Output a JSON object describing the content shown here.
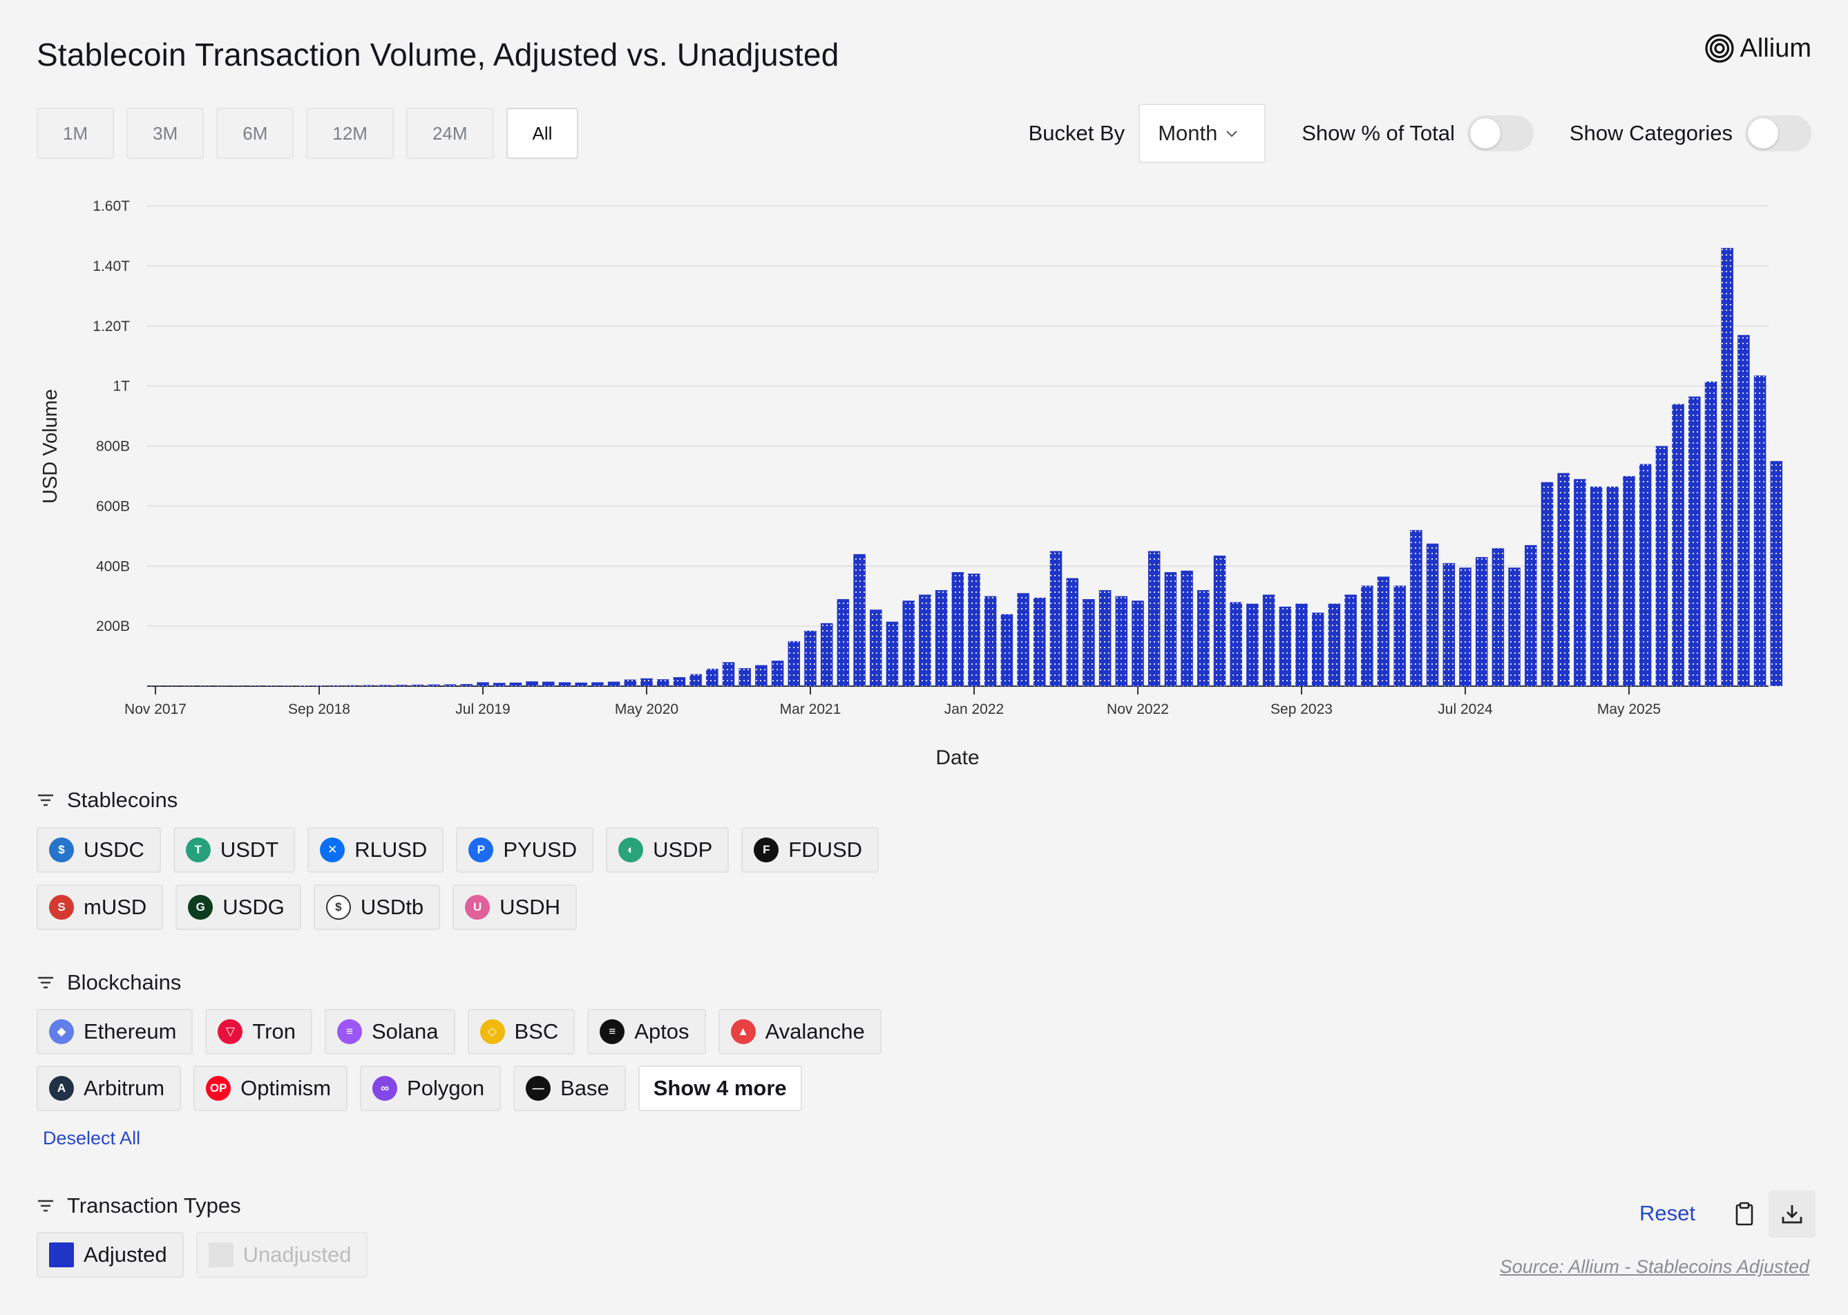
{
  "header": {
    "title": "Stablecoin Transaction Volume, Adjusted vs. Unadjusted",
    "brand": "Allium"
  },
  "range_buttons": [
    "1M",
    "3M",
    "6M",
    "12M",
    "24M",
    "All"
  ],
  "range_active": "All",
  "controls": {
    "bucket_label": "Bucket By",
    "bucket_value": "Month",
    "show_pct_label": "Show % of Total",
    "show_pct_on": false,
    "show_categories_label": "Show Categories",
    "show_categories_on": false
  },
  "chart_data": {
    "type": "bar",
    "xlabel": "Date",
    "ylabel": "USD Volume",
    "ylim": [
      0,
      1600
    ],
    "y_unit": "B",
    "y_ticks": [
      {
        "value": 200,
        "label": "200B"
      },
      {
        "value": 400,
        "label": "400B"
      },
      {
        "value": 600,
        "label": "600B"
      },
      {
        "value": 800,
        "label": "800B"
      },
      {
        "value": 1000,
        "label": "1T"
      },
      {
        "value": 1200,
        "label": "1.20T"
      },
      {
        "value": 1400,
        "label": "1.40T"
      },
      {
        "value": 1600,
        "label": "1.60T"
      }
    ],
    "x_ticks": [
      {
        "index": 0,
        "label": "Nov 2017"
      },
      {
        "index": 10,
        "label": "Sep 2018"
      },
      {
        "index": 20,
        "label": "Jul 2019"
      },
      {
        "index": 30,
        "label": "May 2020"
      },
      {
        "index": 40,
        "label": "Mar 2021"
      },
      {
        "index": 50,
        "label": "Jan 2022"
      },
      {
        "index": 60,
        "label": "Nov 2022"
      },
      {
        "index": 70,
        "label": "Sep 2023"
      },
      {
        "index": 80,
        "label": "Jul 2024"
      },
      {
        "index": 90,
        "label": "May 2025"
      }
    ],
    "grid": true,
    "legend": "none",
    "series": [
      {
        "name": "Adjusted",
        "color": "#1f35c8",
        "values": [
          0.5,
          0.5,
          0.6,
          0.7,
          0.8,
          1.0,
          1.2,
          1.5,
          1.8,
          2.1,
          2.5,
          2.8,
          3.2,
          3.6,
          4,
          4.5,
          5,
          5.5,
          6,
          7,
          13,
          11,
          12,
          16,
          15,
          13,
          12,
          13,
          15,
          22,
          26,
          23,
          30,
          40,
          58,
          80,
          60,
          70,
          85,
          150,
          185,
          210,
          290,
          440,
          255,
          215,
          285,
          305,
          320,
          380,
          375,
          300,
          240,
          310,
          295,
          450,
          360,
          290,
          320,
          300,
          285,
          450,
          380,
          385,
          320,
          435,
          280,
          275,
          305,
          265,
          275,
          245,
          275,
          305,
          335,
          365,
          335,
          520,
          475,
          410,
          395,
          430,
          460,
          395,
          470,
          680,
          710,
          690,
          665,
          665,
          700,
          740,
          800,
          940,
          965,
          1015,
          1460,
          1170,
          1035,
          750
        ]
      }
    ]
  },
  "filters": {
    "stablecoins": {
      "title": "Stablecoins",
      "items": [
        {
          "label": "USDC",
          "icon": "usdc-icon",
          "color": "#2775ca",
          "glyph": "$"
        },
        {
          "label": "USDT",
          "icon": "usdt-icon",
          "color": "#26a17b",
          "glyph": "T"
        },
        {
          "label": "RLUSD",
          "icon": "rlusd-icon",
          "color": "#0b6ff5",
          "glyph": "✕"
        },
        {
          "label": "PYUSD",
          "icon": "pyusd-icon",
          "color": "#1b6cf0",
          "glyph": "P"
        },
        {
          "label": "USDP",
          "icon": "usdp-icon",
          "color": "#2aa37a",
          "glyph": "◐"
        },
        {
          "label": "FDUSD",
          "icon": "fdusd-icon",
          "color": "#111111",
          "glyph": "F"
        },
        {
          "label": "mUSD",
          "icon": "musd-icon",
          "color": "#d43a2f",
          "glyph": "S"
        },
        {
          "label": "USDG",
          "icon": "usdg-icon",
          "color": "#0c3d1f",
          "glyph": "G"
        },
        {
          "label": "USDtb",
          "icon": "usdtb-icon",
          "color": "#ffffff",
          "glyph": "$"
        },
        {
          "label": "USDH",
          "icon": "usdh-icon",
          "color": "#e0609a",
          "glyph": "U"
        }
      ]
    },
    "blockchains": {
      "title": "Blockchains",
      "items": [
        {
          "label": "Ethereum",
          "icon": "ethereum-icon",
          "color": "#627eea",
          "glyph": "◆"
        },
        {
          "label": "Tron",
          "icon": "tron-icon",
          "color": "#e8113d",
          "glyph": "▽"
        },
        {
          "label": "Solana",
          "icon": "solana-icon",
          "color": "#9b57f5",
          "glyph": "≡"
        },
        {
          "label": "BSC",
          "icon": "bsc-icon",
          "color": "#f0b90b",
          "glyph": "◇"
        },
        {
          "label": "Aptos",
          "icon": "aptos-icon",
          "color": "#111111",
          "glyph": "≡"
        },
        {
          "label": "Avalanche",
          "icon": "avalanche-icon",
          "color": "#e84142",
          "glyph": "▲"
        },
        {
          "label": "Arbitrum",
          "icon": "arbitrum-icon",
          "color": "#213147",
          "glyph": "A"
        },
        {
          "label": "Optimism",
          "icon": "optimism-icon",
          "color": "#ff0420",
          "glyph": "OP"
        },
        {
          "label": "Polygon",
          "icon": "polygon-icon",
          "color": "#8247e5",
          "glyph": "∞"
        },
        {
          "label": "Base",
          "icon": "base-icon",
          "color": "#111111",
          "glyph": "—"
        }
      ],
      "more_label": "Show 4 more"
    },
    "deselect_label": "Deselect All",
    "transaction_types": {
      "title": "Transaction Types",
      "items": [
        {
          "label": "Adjusted",
          "color": "#1f35c8",
          "active": true
        },
        {
          "label": "Unadjusted",
          "color": "#e2e2e2",
          "active": false
        }
      ]
    }
  },
  "footer": {
    "reset_label": "Reset",
    "source": "Source: Allium - Stablecoins Adjusted"
  }
}
